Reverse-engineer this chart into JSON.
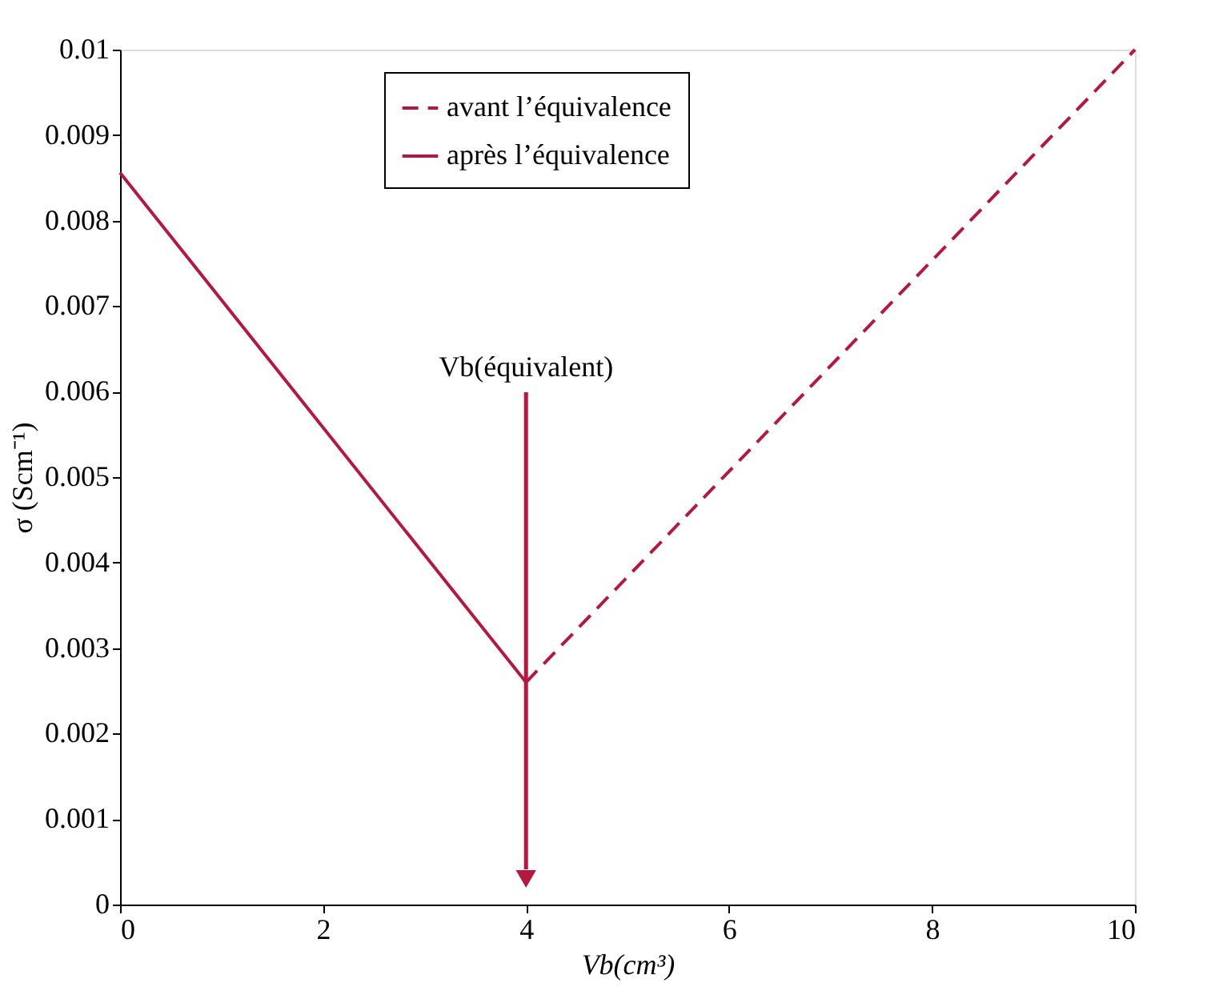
{
  "chart_data": {
    "type": "line",
    "xlabel": "Vb(cm³)",
    "ylabel": "σ (Scm⁻¹)",
    "series": [
      {
        "name": "avant l’équivalence",
        "color": "#b5173f",
        "line_style": "dashed",
        "x": [
          4,
          10
        ],
        "values": [
          0.0026,
          0.01
        ]
      },
      {
        "name": "après l’équivalence",
        "color": "#b5173f",
        "line_style": "solid",
        "x": [
          0,
          4
        ],
        "values": [
          0.00856,
          0.0026
        ]
      }
    ],
    "annotations": [
      "Vb(équivalent)"
    ],
    "xlim": [
      0,
      10
    ],
    "xticks": [
      0,
      2,
      4,
      6,
      8,
      10
    ],
    "ylim": [
      0,
      0.01
    ],
    "yticks": [
      0,
      0.001,
      0.002,
      0.003,
      0.004,
      0.005,
      0.006,
      0.007,
      0.008,
      0.009,
      0.01
    ],
    "grid": false,
    "legend": "top",
    "marker": "none"
  }
}
